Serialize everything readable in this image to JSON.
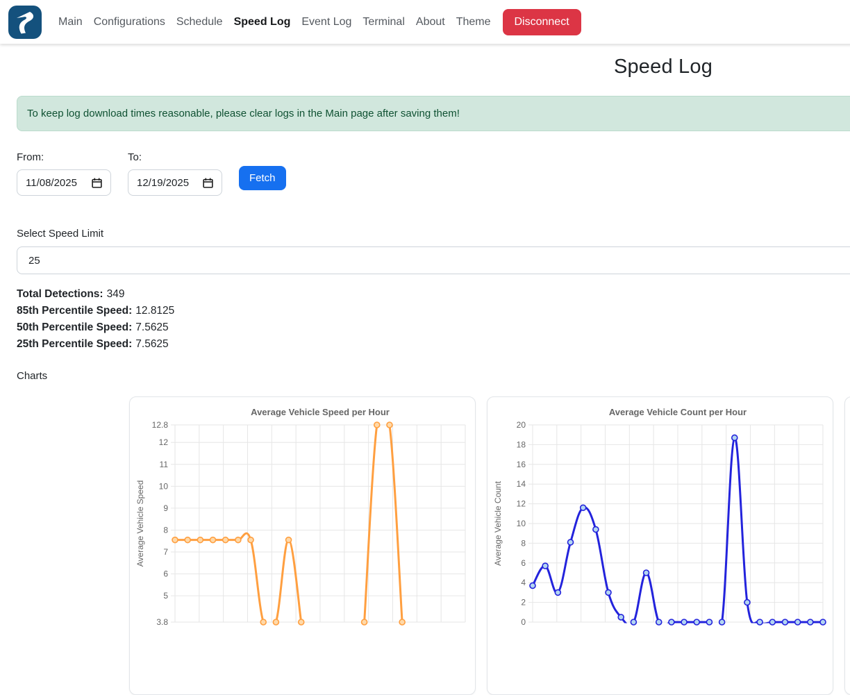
{
  "navbar": {
    "brand_icon": "winding-road-logo-icon",
    "items": [
      {
        "label": "Main"
      },
      {
        "label": "Configurations"
      },
      {
        "label": "Schedule"
      },
      {
        "label": "Speed Log"
      },
      {
        "label": "Event Log"
      },
      {
        "label": "Terminal"
      },
      {
        "label": "About"
      },
      {
        "label": "Theme"
      }
    ],
    "active_item": "Speed Log",
    "disconnect_label": "Disconnect",
    "disconnect_color": "#dc3545"
  },
  "page": {
    "title": "Speed Log"
  },
  "alert": {
    "text": "To keep log download times reasonable, please clear logs in the Main page after saving them!",
    "background": "#d1e7dd",
    "text_color": "#0f5132"
  },
  "filters": {
    "from_label": "From:",
    "from_value": "11/08/2025",
    "to_label": "To:",
    "to_value": "12/19/2025",
    "calendar_icon": "calendar-icon",
    "fetch_label": "Fetch",
    "fetch_color": "#1670f0",
    "speed_limit_label": "Select Speed Limit",
    "speed_limit_value": "25"
  },
  "stats": [
    {
      "label": "Total Detections:",
      "value": "349"
    },
    {
      "label": "85th Percentile Speed:",
      "value": "12.8125"
    },
    {
      "label": "50th Percentile Speed:",
      "value": "7.5625"
    },
    {
      "label": "25th Percentile Speed:",
      "value": "7.5625"
    }
  ],
  "charts_label": "Charts",
  "chart_data": [
    {
      "type": "line",
      "title": "Average Vehicle Speed per Hour",
      "ylabel": "Average Vehicle Speed",
      "ylim": [
        3.8,
        12.8
      ],
      "yticks": [
        12.8,
        12,
        11,
        10,
        9,
        8,
        7,
        6,
        5,
        3.8
      ],
      "num_points": 24,
      "values": [
        7.55,
        7.55,
        7.55,
        7.55,
        7.55,
        7.55,
        7.55,
        3.8,
        3.8,
        7.55,
        3.8,
        null,
        null,
        null,
        null,
        3.8,
        12.8,
        12.8,
        3.8,
        null,
        null,
        null,
        null,
        null
      ],
      "line_color": "#ff9f40",
      "marker_fill": "#ffd9a8",
      "grid": true,
      "legend": "none"
    },
    {
      "type": "line",
      "title": "Average Vehicle Count per Hour",
      "ylabel": "Average Vehicle Count",
      "ylim": [
        0,
        20
      ],
      "yticks": [
        20,
        18,
        16,
        14,
        12,
        10,
        8,
        6,
        4,
        2,
        0
      ],
      "num_points": 24,
      "values": [
        3.7,
        5.7,
        3.0,
        8.1,
        11.6,
        9.4,
        3.0,
        0.5,
        0,
        5.0,
        0,
        0,
        0,
        0,
        0,
        0,
        18.7,
        2.0,
        0,
        0,
        0,
        0,
        0,
        0
      ],
      "line_color": "#2323dc",
      "marker_fill": "#b3d5f1",
      "grid": true,
      "legend": "none"
    }
  ]
}
